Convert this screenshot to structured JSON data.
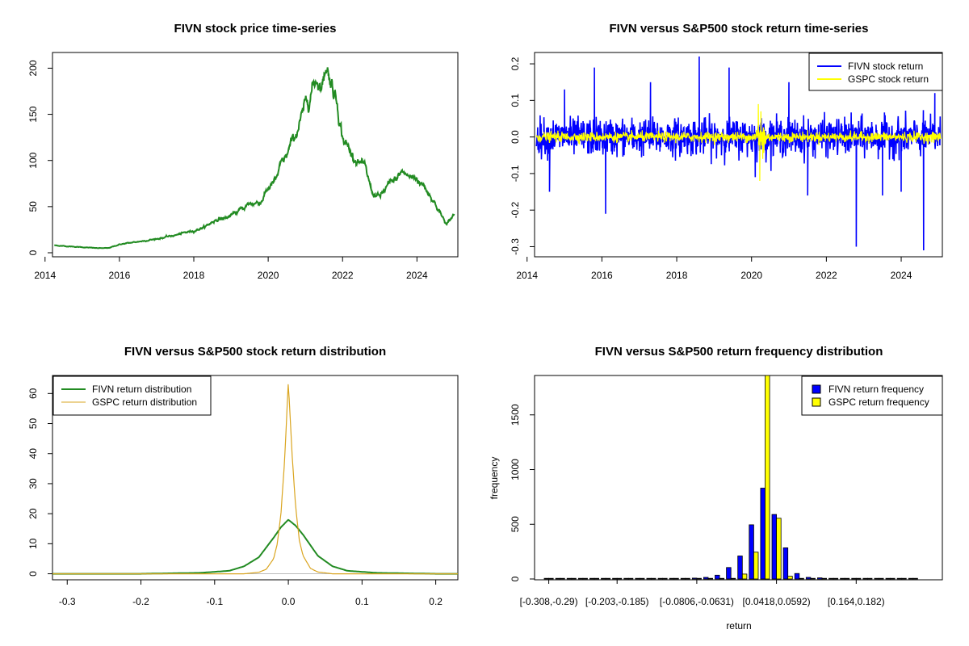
{
  "colors": {
    "price": "#228B22",
    "fivn_return": "#0000FF",
    "gspc_return": "#FFFF00",
    "fivn_density": "#228B22",
    "gspc_density": "#DAA520",
    "fivn_hist": "#0000FF",
    "gspc_hist": "#FFFF00"
  },
  "chart_data": [
    {
      "type": "line",
      "title": "FIVN stock price time-series",
      "xlabel": "",
      "ylabel": "",
      "x_ticks": [
        "2014",
        "2016",
        "2018",
        "2020",
        "2022",
        "2024"
      ],
      "y_ticks": [
        "0",
        "50",
        "100",
        "150",
        "200"
      ],
      "xlim": [
        2014.2,
        2025.1
      ],
      "ylim": [
        0,
        210
      ],
      "series": [
        {
          "x": [
            2014.25,
            2014.6,
            2015.0,
            2015.4,
            2015.7,
            2016.0,
            2016.5,
            2017.0,
            2017.5,
            2018.0,
            2018.3,
            2018.6,
            2018.9,
            2019.2,
            2019.5,
            2019.8,
            2020.0,
            2020.2,
            2020.35,
            2020.5,
            2020.7,
            2020.9,
            2021.0,
            2021.15,
            2021.3,
            2021.45,
            2021.55,
            2021.7,
            2021.85,
            2022.0,
            2022.2,
            2022.4,
            2022.6,
            2022.8,
            2023.0,
            2023.2,
            2023.4,
            2023.6,
            2023.8,
            2024.0,
            2024.2,
            2024.4,
            2024.6,
            2024.8,
            2025.0
          ],
          "y": [
            8,
            7,
            6,
            5,
            5,
            9,
            12,
            15,
            19,
            24,
            28,
            36,
            38,
            45,
            53,
            55,
            70,
            78,
            95,
            105,
            125,
            145,
            160,
            175,
            190,
            180,
            205,
            185,
            165,
            125,
            110,
            100,
            92,
            65,
            60,
            72,
            78,
            88,
            82,
            80,
            72,
            60,
            45,
            30,
            42
          ]
        }
      ]
    },
    {
      "type": "line",
      "title": "FIVN versus S&P500 stock return time-series",
      "xlabel": "",
      "ylabel": "",
      "x_ticks": [
        "2014",
        "2016",
        "2018",
        "2020",
        "2022",
        "2024"
      ],
      "y_ticks": [
        "-0.3",
        "-0.2",
        "-0.1",
        "0.0",
        "0.1",
        "0.2"
      ],
      "xlim": [
        2014.2,
        2025.1
      ],
      "ylim": [
        -0.31,
        0.22
      ],
      "legend": "top-right",
      "series": [
        {
          "name": "FIVN stock return",
          "spread": 0.045,
          "spikes": [
            [
              2014.6,
              -0.15
            ],
            [
              2015.0,
              0.13
            ],
            [
              2015.8,
              0.19
            ],
            [
              2016.1,
              -0.21
            ],
            [
              2017.3,
              0.15
            ],
            [
              2018.6,
              0.22
            ],
            [
              2019.4,
              0.19
            ],
            [
              2020.1,
              -0.11
            ],
            [
              2021.0,
              0.15
            ],
            [
              2021.5,
              -0.16
            ],
            [
              2022.8,
              -0.3
            ],
            [
              2023.5,
              -0.16
            ],
            [
              2024.0,
              -0.15
            ],
            [
              2024.6,
              -0.31
            ],
            [
              2024.9,
              0.12
            ]
          ]
        },
        {
          "name": "GSPC stock return",
          "spread": 0.012,
          "spikes": [
            [
              2020.18,
              0.09
            ],
            [
              2020.22,
              -0.12
            ],
            [
              2020.25,
              0.07
            ],
            [
              2020.3,
              -0.06
            ]
          ]
        }
      ]
    },
    {
      "type": "line",
      "title": "FIVN versus S&P500 stock return distribution",
      "xlabel": "",
      "ylabel": "",
      "x_ticks": [
        "-0.3",
        "-0.2",
        "-0.1",
        "0.0",
        "0.1",
        "0.2"
      ],
      "y_ticks": [
        "0",
        "10",
        "20",
        "30",
        "40",
        "50",
        "60"
      ],
      "xlim": [
        -0.32,
        0.23
      ],
      "ylim": [
        -2,
        66
      ],
      "legend": "top-left",
      "series": [
        {
          "name": "FIVN return distribution",
          "x": [
            -0.32,
            -0.2,
            -0.12,
            -0.08,
            -0.06,
            -0.04,
            -0.02,
            -0.01,
            0.0,
            0.01,
            0.02,
            0.04,
            0.06,
            0.08,
            0.12,
            0.2,
            0.23
          ],
          "y": [
            0,
            0,
            0.3,
            1,
            2.5,
            5.5,
            12,
            15.5,
            18,
            16,
            13,
            6,
            2.5,
            1,
            0.3,
            0,
            0
          ]
        },
        {
          "name": "GSPC return distribution",
          "x": [
            -0.32,
            -0.06,
            -0.04,
            -0.03,
            -0.02,
            -0.015,
            -0.01,
            -0.005,
            0.0,
            0.005,
            0.01,
            0.015,
            0.02,
            0.03,
            0.04,
            0.06,
            0.23
          ],
          "y": [
            0,
            0,
            0.5,
            1.5,
            5,
            10,
            20,
            38,
            64,
            40,
            22,
            11,
            6,
            1.8,
            0.6,
            0,
            0
          ]
        }
      ]
    },
    {
      "type": "bar",
      "title": "FIVN versus S&P500 return frequency distribution",
      "xlabel": "return",
      "ylabel": "frequency",
      "x_ticks": [
        "[-0.308,-0.29)",
        "[-0.203,-0.185)",
        "[-0.0806,-0.0631)",
        "[0.0418,0.0592)",
        "[0.164,0.182)"
      ],
      "y_ticks": [
        "0",
        "500",
        "1000",
        "1500"
      ],
      "ylim": [
        0,
        1860
      ],
      "legend": "top-right",
      "series": [
        {
          "name": "FIVN return frequency",
          "values": [
            2,
            1,
            0,
            0,
            0,
            0,
            1,
            0,
            2,
            1,
            3,
            2,
            4,
            8,
            15,
            35,
            105,
            210,
            495,
            830,
            590,
            285,
            50,
            15,
            10,
            6,
            4,
            3,
            2,
            2,
            1,
            1,
            0
          ]
        },
        {
          "name": "GSPC return frequency",
          "values": [
            0,
            0,
            0,
            0,
            0,
            0,
            0,
            0,
            0,
            0,
            0,
            0,
            0,
            0,
            0,
            2,
            5,
            45,
            245,
            1860,
            555,
            25,
            3,
            1,
            0,
            0,
            0,
            0,
            0,
            0,
            0,
            0,
            0
          ]
        }
      ]
    }
  ]
}
